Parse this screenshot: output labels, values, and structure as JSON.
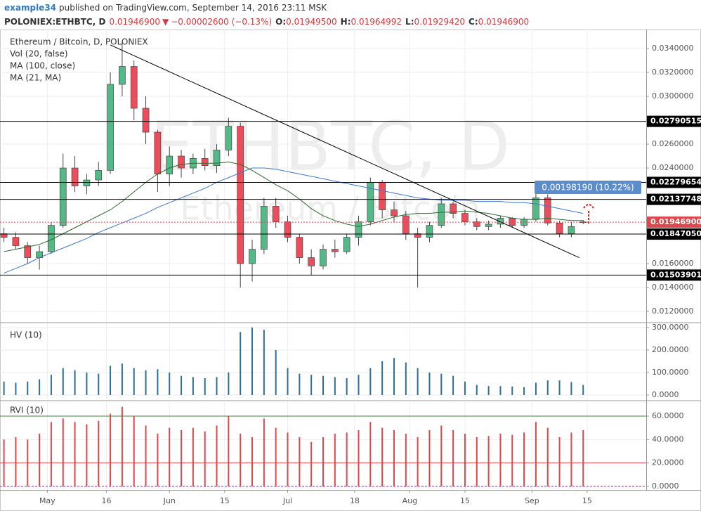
{
  "header": {
    "user": "example34",
    "published": "published on TradingView.com, September 14, 2016 23:11 MSK",
    "symbol": "POLONIEX:ETHBTC, D",
    "last": "0.01946900",
    "arrow": "▼",
    "change": "−0.00002600 (−0.13%)",
    "ohlc": [
      {
        "label": "O:",
        "value": "0.01949500"
      },
      {
        "label": "H:",
        "value": "0.01964992"
      },
      {
        "label": "L:",
        "value": "0.01929420"
      },
      {
        "label": "C:",
        "value": "0.01946900"
      }
    ]
  },
  "chart_data": [
    {
      "type": "candlestick",
      "title": "Ethereum / Bitcoin, D, POLONIEX",
      "indicators": [
        "Vol (20, false)"
      ],
      "watermark": "ETHBTC, D",
      "watermark_sub": "Ethereum / Bitcoin",
      "x": [
        "2016-04-20",
        "2016-04-23",
        "2016-04-26",
        "2016-04-29",
        "2016-05-02",
        "2016-05-05",
        "2016-05-08",
        "2016-05-11",
        "2016-05-14",
        "2016-05-17",
        "2016-05-20",
        "2016-05-23",
        "2016-05-26",
        "2016-05-29",
        "2016-06-01",
        "2016-06-04",
        "2016-06-07",
        "2016-06-10",
        "2016-06-13",
        "2016-06-16",
        "2016-06-19",
        "2016-06-22",
        "2016-06-25",
        "2016-06-28",
        "2016-07-01",
        "2016-07-04",
        "2016-07-07",
        "2016-07-10",
        "2016-07-13",
        "2016-07-16",
        "2016-07-19",
        "2016-07-22",
        "2016-07-25",
        "2016-07-28",
        "2016-07-31",
        "2016-08-03",
        "2016-08-06",
        "2016-08-09",
        "2016-08-12",
        "2016-08-15",
        "2016-08-18",
        "2016-08-21",
        "2016-08-24",
        "2016-08-27",
        "2016-08-30",
        "2016-09-02",
        "2016-09-05",
        "2016-09-08",
        "2016-09-11",
        "2016-09-14"
      ],
      "open": [
        0.0185,
        0.0182,
        0.0175,
        0.0165,
        0.017,
        0.0192,
        0.024,
        0.0225,
        0.023,
        0.0238,
        0.031,
        0.0325,
        0.029,
        0.027,
        0.0235,
        0.025,
        0.024,
        0.0248,
        0.0242,
        0.0255,
        0.0275,
        0.016,
        0.0172,
        0.0208,
        0.0195,
        0.0182,
        0.0165,
        0.0158,
        0.0172,
        0.017,
        0.0182,
        0.0195,
        0.0228,
        0.0205,
        0.02,
        0.0185,
        0.0182,
        0.0192,
        0.021,
        0.0202,
        0.0195,
        0.0191,
        0.0193,
        0.0198,
        0.0192,
        0.0197,
        0.0215,
        0.0194,
        0.0185,
        0.019495
      ],
      "high": [
        0.019,
        0.0186,
        0.0178,
        0.0175,
        0.0195,
        0.0252,
        0.025,
        0.0235,
        0.0245,
        0.032,
        0.0345,
        0.033,
        0.03,
        0.0272,
        0.0258,
        0.0255,
        0.0252,
        0.0256,
        0.026,
        0.0282,
        0.0278,
        0.018,
        0.0215,
        0.0215,
        0.02,
        0.0185,
        0.0172,
        0.0176,
        0.018,
        0.0185,
        0.02,
        0.0232,
        0.023,
        0.0212,
        0.0204,
        0.019,
        0.0195,
        0.0215,
        0.0212,
        0.0205,
        0.0198,
        0.0196,
        0.02,
        0.0199,
        0.0199,
        0.0222,
        0.0218,
        0.0196,
        0.0195,
        0.01964992
      ],
      "low": [
        0.0178,
        0.0172,
        0.016,
        0.0155,
        0.0168,
        0.019,
        0.022,
        0.0218,
        0.0225,
        0.0235,
        0.03,
        0.028,
        0.026,
        0.022,
        0.0225,
        0.0232,
        0.0235,
        0.0238,
        0.0236,
        0.025,
        0.014,
        0.0145,
        0.0168,
        0.019,
        0.0178,
        0.016,
        0.015,
        0.0155,
        0.0165,
        0.0168,
        0.0175,
        0.0192,
        0.0198,
        0.0195,
        0.018,
        0.014,
        0.0178,
        0.019,
        0.0198,
        0.0192,
        0.0188,
        0.0188,
        0.019,
        0.019,
        0.019,
        0.0195,
        0.0192,
        0.0182,
        0.0182,
        0.0192942
      ],
      "close": [
        0.0182,
        0.0175,
        0.0165,
        0.017,
        0.0192,
        0.024,
        0.0225,
        0.023,
        0.0238,
        0.031,
        0.0325,
        0.029,
        0.027,
        0.0235,
        0.025,
        0.024,
        0.0248,
        0.0242,
        0.0255,
        0.0275,
        0.016,
        0.0172,
        0.0208,
        0.0195,
        0.0182,
        0.0165,
        0.0158,
        0.0172,
        0.017,
        0.0182,
        0.0195,
        0.0228,
        0.0205,
        0.02,
        0.0185,
        0.0182,
        0.0192,
        0.021,
        0.0202,
        0.0195,
        0.0191,
        0.0193,
        0.0198,
        0.0192,
        0.0197,
        0.0215,
        0.0194,
        0.0185,
        0.0191,
        0.019469
      ],
      "up_color": "#53b987",
      "down_color": "#eb4d5c",
      "series": [
        {
          "name": "MA (100, close)",
          "color": "#3c78d8",
          "values": [
            0.0152,
            0.0156,
            0.016,
            0.0165,
            0.0169,
            0.0173,
            0.0177,
            0.0181,
            0.0186,
            0.019,
            0.0194,
            0.0198,
            0.0202,
            0.0207,
            0.0211,
            0.0215,
            0.0219,
            0.0223,
            0.0228,
            0.0232,
            0.0236,
            0.024,
            0.024,
            0.0239,
            0.0237,
            0.0235,
            0.0233,
            0.0231,
            0.0229,
            0.0227,
            0.0225,
            0.0223,
            0.0221,
            0.0219,
            0.0217,
            0.0215,
            0.0214,
            0.0213,
            0.0213,
            0.0213,
            0.0212,
            0.0212,
            0.0212,
            0.0211,
            0.0211,
            0.021,
            0.0208,
            0.0206,
            0.0204,
            0.0202
          ]
        },
        {
          "name": "MA (21, MA)",
          "color": "#2e6b2e",
          "values": [
            0.017,
            0.0172,
            0.0174,
            0.0176,
            0.018,
            0.0185,
            0.019,
            0.0195,
            0.02,
            0.0205,
            0.0212,
            0.022,
            0.0228,
            0.0235,
            0.024,
            0.0243,
            0.0244,
            0.0244,
            0.0244,
            0.0245,
            0.0243,
            0.0238,
            0.0232,
            0.0226,
            0.0221,
            0.0214,
            0.0206,
            0.02,
            0.0196,
            0.0193,
            0.0191,
            0.0193,
            0.0196,
            0.0199,
            0.0201,
            0.0202,
            0.0202,
            0.0203,
            0.0203,
            0.0204,
            0.0203,
            0.0202,
            0.02,
            0.0198,
            0.0197,
            0.0197,
            0.0198,
            0.0197,
            0.0196,
            0.0196
          ]
        }
      ],
      "xlim": [
        "2016-04-19",
        "2016-09-30"
      ],
      "ylim": [
        0.01112,
        0.03559
      ],
      "grid": true,
      "yticks": [
        {
          "value": 0.034,
          "label": "0.0340000"
        },
        {
          "value": 0.032,
          "label": "0.0320000"
        },
        {
          "value": 0.03,
          "label": "0.0300000"
        },
        {
          "value": 0.026,
          "label": "0.0260000"
        },
        {
          "value": 0.024,
          "label": "0.0240000"
        },
        {
          "value": 0.016,
          "label": "0.0160000"
        },
        {
          "value": 0.014,
          "label": "0.0140000"
        },
        {
          "value": 0.012,
          "label": "0.0120000"
        }
      ],
      "xticks": [
        {
          "value": "2016-05-01",
          "label": "May"
        },
        {
          "value": "2016-05-16",
          "label": "16"
        },
        {
          "value": "2016-06-01",
          "label": "Jun"
        },
        {
          "value": "2016-06-15",
          "label": "15"
        },
        {
          "value": "2016-07-01",
          "label": "Jul"
        },
        {
          "value": "2016-07-18",
          "label": "18"
        },
        {
          "value": "2016-08-01",
          "label": "Aug"
        },
        {
          "value": "2016-08-15",
          "label": "15"
        },
        {
          "value": "2016-09-01",
          "label": "Sep"
        },
        {
          "value": "2016-09-15",
          "label": "15"
        }
      ],
      "levels": [
        {
          "value": 0.02790515,
          "label": "0.02790515"
        },
        {
          "value": 0.02279654,
          "label": "0.02279654"
        },
        {
          "value": 0.02137748,
          "label": "0.02137748"
        },
        {
          "value": 0.0184705,
          "label": "0.01847050"
        },
        {
          "value": 0.01503901,
          "label": "0.01503901"
        }
      ],
      "last": {
        "value": 0.019469,
        "label": "0.01946900"
      },
      "trendline": {
        "x": [
          "2016-05-17",
          "2016-09-13"
        ],
        "y": [
          0.0343,
          0.0165
        ]
      },
      "annotation": "0.00198190 (10.22%)"
    },
    {
      "type": "bar",
      "title": "HV (10)",
      "color": "#2b6f97",
      "x": [
        "2016-04-20",
        "2016-04-23",
        "2016-04-26",
        "2016-04-29",
        "2016-05-02",
        "2016-05-05",
        "2016-05-08",
        "2016-05-11",
        "2016-05-14",
        "2016-05-17",
        "2016-05-20",
        "2016-05-23",
        "2016-05-26",
        "2016-05-29",
        "2016-06-01",
        "2016-06-04",
        "2016-06-07",
        "2016-06-10",
        "2016-06-13",
        "2016-06-16",
        "2016-06-19",
        "2016-06-22",
        "2016-06-25",
        "2016-06-28",
        "2016-07-01",
        "2016-07-04",
        "2016-07-07",
        "2016-07-10",
        "2016-07-13",
        "2016-07-16",
        "2016-07-19",
        "2016-07-22",
        "2016-07-25",
        "2016-07-28",
        "2016-07-31",
        "2016-08-03",
        "2016-08-06",
        "2016-08-09",
        "2016-08-12",
        "2016-08-15",
        "2016-08-18",
        "2016-08-21",
        "2016-08-24",
        "2016-08-27",
        "2016-08-30",
        "2016-09-02",
        "2016-09-05",
        "2016-09-08",
        "2016-09-11",
        "2016-09-14"
      ],
      "values": [
        60,
        55,
        60,
        70,
        90,
        120,
        110,
        100,
        95,
        130,
        140,
        120,
        110,
        115,
        100,
        85,
        80,
        75,
        80,
        100,
        280,
        300,
        290,
        200,
        120,
        95,
        90,
        85,
        80,
        75,
        90,
        120,
        150,
        165,
        145,
        120,
        100,
        95,
        85,
        60,
        45,
        40,
        40,
        38,
        35,
        55,
        65,
        65,
        58,
        45
      ],
      "ylim": [
        -18.75,
        318.75
      ],
      "grid": true,
      "yticks": [
        {
          "value": 0,
          "label": "0.0000"
        },
        {
          "value": 100,
          "label": "100.0000"
        },
        {
          "value": 200,
          "label": "200.0000"
        },
        {
          "value": 300,
          "label": "300.0000"
        }
      ]
    },
    {
      "type": "bar",
      "title": "RVI (10)",
      "color": "#e0474c",
      "x": [
        "2016-04-20",
        "2016-04-23",
        "2016-04-26",
        "2016-04-29",
        "2016-05-02",
        "2016-05-05",
        "2016-05-08",
        "2016-05-11",
        "2016-05-14",
        "2016-05-17",
        "2016-05-20",
        "2016-05-23",
        "2016-05-26",
        "2016-05-29",
        "2016-06-01",
        "2016-06-04",
        "2016-06-07",
        "2016-06-10",
        "2016-06-13",
        "2016-06-16",
        "2016-06-19",
        "2016-06-22",
        "2016-06-25",
        "2016-06-28",
        "2016-07-01",
        "2016-07-04",
        "2016-07-07",
        "2016-07-10",
        "2016-07-13",
        "2016-07-16",
        "2016-07-19",
        "2016-07-22",
        "2016-07-25",
        "2016-07-28",
        "2016-07-31",
        "2016-08-03",
        "2016-08-06",
        "2016-08-09",
        "2016-08-12",
        "2016-08-15",
        "2016-08-18",
        "2016-08-21",
        "2016-08-24",
        "2016-08-27",
        "2016-08-30",
        "2016-09-02",
        "2016-09-05",
        "2016-09-08",
        "2016-09-11",
        "2016-09-14"
      ],
      "values": [
        40,
        42,
        40,
        45,
        55,
        58,
        55,
        53,
        56,
        62,
        68,
        60,
        52,
        45,
        50,
        48,
        50,
        47,
        52,
        60,
        45,
        42,
        58,
        50,
        46,
        42,
        38,
        42,
        45,
        46,
        48,
        55,
        50,
        48,
        45,
        42,
        48,
        52,
        48,
        45,
        42,
        43,
        45,
        44,
        46,
        55,
        50,
        42,
        46,
        48
      ],
      "ylim": [
        -3,
        72
      ],
      "grid": true,
      "yticks": [
        {
          "value": 0,
          "label": "0.0000"
        },
        {
          "value": 20,
          "label": "20.0000"
        },
        {
          "value": 40,
          "label": "40.0000"
        },
        {
          "value": 60,
          "label": "60.0000"
        }
      ],
      "hlines": [
        {
          "value": 60,
          "color": "#3a8a3a"
        },
        {
          "value": 20,
          "color": "#e0474c"
        },
        {
          "value": 0,
          "color": "#9c27b0"
        }
      ]
    }
  ]
}
